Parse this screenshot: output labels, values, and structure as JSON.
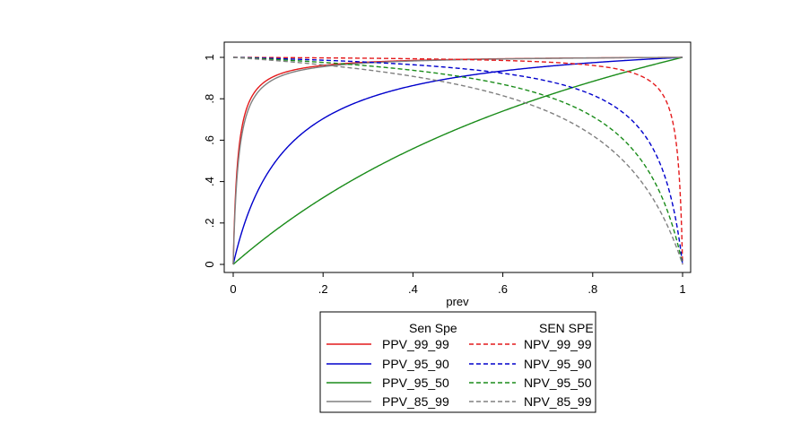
{
  "chart_data": {
    "type": "line",
    "title": "",
    "xlabel": "prev",
    "ylabel": "",
    "xlim": [
      0,
      1
    ],
    "ylim": [
      0,
      1
    ],
    "x_ticks": [
      "0",
      ".2",
      ".4",
      ".6",
      ".8",
      "1"
    ],
    "y_ticks": [
      "0",
      ".2",
      ".4",
      ".6",
      ".8",
      "1"
    ],
    "x_tick_values": [
      0,
      0.2,
      0.4,
      0.6,
      0.8,
      1
    ],
    "y_tick_values": [
      0,
      0.2,
      0.4,
      0.6,
      0.8,
      1
    ],
    "grid": false,
    "legend": {
      "placement": "bottom",
      "columns": 2,
      "headers": [
        "Sen Spe",
        "SEN SPE"
      ]
    },
    "series": [
      {
        "name": "PPV_99_99",
        "metric": "PPV",
        "sens": 0.99,
        "spec": 0.99,
        "color": "#e41a1c",
        "dash": "solid",
        "x": [
          0,
          0.02,
          0.05,
          0.1,
          0.2,
          0.3,
          0.5,
          0.7,
          0.9,
          1
        ],
        "values": [
          0,
          0.669,
          0.839,
          0.917,
          0.961,
          0.977,
          0.99,
          0.996,
          0.999,
          1
        ]
      },
      {
        "name": "PPV_95_90",
        "metric": "PPV",
        "sens": 0.95,
        "spec": 0.9,
        "color": "#0000cc",
        "dash": "solid",
        "x": [
          0,
          0.02,
          0.05,
          0.1,
          0.2,
          0.3,
          0.5,
          0.7,
          0.9,
          1
        ],
        "values": [
          0,
          0.162,
          0.333,
          0.514,
          0.704,
          0.803,
          0.905,
          0.957,
          0.988,
          1
        ]
      },
      {
        "name": "PPV_95_50",
        "metric": "PPV",
        "sens": 0.95,
        "spec": 0.5,
        "color": "#1a8c1a",
        "dash": "solid",
        "x": [
          0,
          0.02,
          0.05,
          0.1,
          0.2,
          0.3,
          0.5,
          0.7,
          0.9,
          1
        ],
        "values": [
          0,
          0.037,
          0.091,
          0.174,
          0.322,
          0.449,
          0.655,
          0.816,
          0.945,
          1
        ]
      },
      {
        "name": "PPV_85_99",
        "metric": "PPV",
        "sens": 0.85,
        "spec": 0.99,
        "color": "#808080",
        "dash": "solid",
        "x": [
          0,
          0.02,
          0.05,
          0.1,
          0.2,
          0.3,
          0.5,
          0.7,
          0.9,
          1
        ],
        "values": [
          0,
          0.634,
          0.817,
          0.904,
          0.955,
          0.973,
          0.988,
          0.995,
          0.999,
          1
        ]
      },
      {
        "name": "NPV_99_99",
        "metric": "NPV",
        "sens": 0.99,
        "spec": 0.99,
        "color": "#e41a1c",
        "dash": "dashed",
        "x": [
          0,
          0.1,
          0.3,
          0.5,
          0.7,
          0.8,
          0.9,
          0.95,
          0.98,
          1
        ],
        "values": [
          1,
          0.999,
          0.996,
          0.99,
          0.977,
          0.961,
          0.917,
          0.839,
          0.669,
          0
        ]
      },
      {
        "name": "NPV_95_90",
        "metric": "NPV",
        "sens": 0.95,
        "spec": 0.9,
        "color": "#0000cc",
        "dash": "dashed",
        "x": [
          0,
          0.1,
          0.3,
          0.5,
          0.7,
          0.8,
          0.9,
          0.95,
          0.98,
          1
        ],
        "values": [
          1,
          0.994,
          0.977,
          0.947,
          0.885,
          0.818,
          0.667,
          0.486,
          0.269,
          0
        ]
      },
      {
        "name": "NPV_95_50",
        "metric": "NPV",
        "sens": 0.95,
        "spec": 0.5,
        "color": "#1a8c1a",
        "dash": "dashed",
        "x": [
          0,
          0.1,
          0.3,
          0.5,
          0.7,
          0.8,
          0.9,
          0.95,
          0.98,
          1
        ],
        "values": [
          1,
          0.989,
          0.959,
          0.909,
          0.811,
          0.714,
          0.526,
          0.345,
          0.169,
          0
        ]
      },
      {
        "name": "NPV_85_99",
        "metric": "NPV",
        "sens": 0.85,
        "spec": 0.99,
        "color": "#808080",
        "dash": "dashed",
        "x": [
          0,
          0.1,
          0.3,
          0.5,
          0.7,
          0.8,
          0.9,
          0.95,
          0.98,
          1
        ],
        "values": [
          1,
          0.983,
          0.939,
          0.868,
          0.739,
          0.623,
          0.423,
          0.258,
          0.121,
          0
        ]
      }
    ]
  }
}
